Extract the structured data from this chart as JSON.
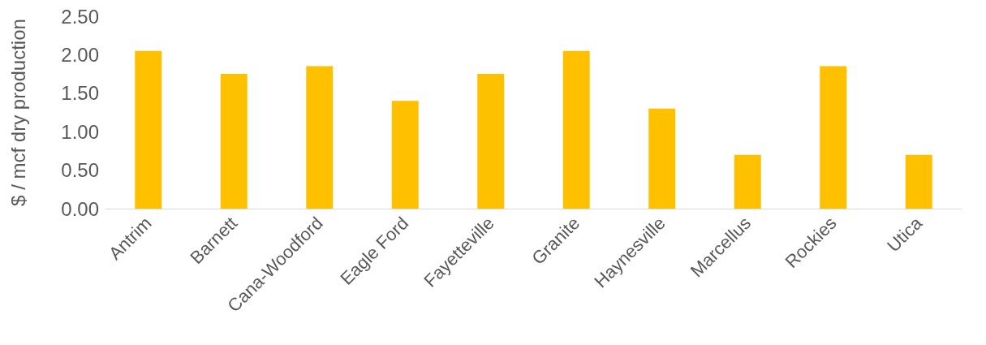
{
  "chart_data": {
    "type": "bar",
    "ylabel": "$ / mcf dry production",
    "categories": [
      "Antrim",
      "Barnett",
      "Cana-Woodford",
      "Eagle Ford",
      "Fayetteville",
      "Granite",
      "Haynesville",
      "Marcellus",
      "Rockies",
      "Utica"
    ],
    "values": [
      2.05,
      1.75,
      1.85,
      1.4,
      1.75,
      2.05,
      1.3,
      0.7,
      1.85,
      0.7
    ],
    "color": "#ffc000",
    "ylim": [
      0,
      2.5
    ],
    "yticks": [
      {
        "value": 0,
        "label": "0.00"
      },
      {
        "value": 0.5,
        "label": "0.50"
      },
      {
        "value": 1,
        "label": "1.00"
      },
      {
        "value": 1.5,
        "label": "1.50"
      },
      {
        "value": 2,
        "label": "2.00"
      },
      {
        "value": 2.5,
        "label": "2.50"
      }
    ],
    "grid": false
  }
}
